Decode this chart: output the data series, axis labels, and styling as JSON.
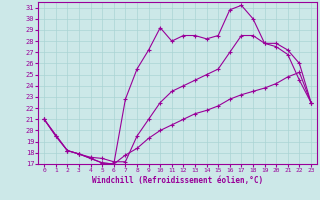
{
  "xlabel": "Windchill (Refroidissement éolien,°C)",
  "bg_color": "#cce8e8",
  "line_color": "#990099",
  "grid_color": "#aad4d4",
  "xlim": [
    -0.5,
    23.5
  ],
  "ylim": [
    17,
    31.5
  ],
  "xticks": [
    0,
    1,
    2,
    3,
    4,
    5,
    6,
    7,
    8,
    9,
    10,
    11,
    12,
    13,
    14,
    15,
    16,
    17,
    18,
    19,
    20,
    21,
    22,
    23
  ],
  "yticks": [
    17,
    18,
    19,
    20,
    21,
    22,
    23,
    24,
    25,
    26,
    27,
    28,
    29,
    30,
    31
  ],
  "line1_x": [
    0,
    1,
    2,
    3,
    4,
    5,
    6,
    7,
    8,
    9,
    10,
    11,
    12,
    13,
    14,
    15,
    16,
    17,
    18,
    19,
    20,
    21,
    22,
    23
  ],
  "line1_y": [
    21.0,
    19.5,
    18.2,
    17.9,
    17.5,
    17.1,
    17.0,
    17.8,
    18.4,
    19.3,
    20.0,
    20.5,
    21.0,
    21.5,
    21.8,
    22.2,
    22.8,
    23.2,
    23.5,
    23.8,
    24.2,
    24.8,
    25.2,
    22.5
  ],
  "line2_x": [
    0,
    1,
    2,
    3,
    4,
    5,
    6,
    7,
    8,
    9,
    10,
    11,
    12,
    13,
    14,
    15,
    16,
    17,
    18,
    19,
    20,
    21,
    22,
    23
  ],
  "line2_y": [
    21.0,
    19.5,
    18.2,
    17.9,
    17.5,
    17.1,
    17.0,
    22.8,
    25.5,
    27.2,
    29.2,
    28.0,
    28.5,
    28.5,
    28.2,
    28.5,
    30.8,
    31.2,
    30.0,
    27.8,
    27.5,
    26.8,
    24.5,
    22.5
  ],
  "line3_x": [
    0,
    2,
    3,
    4,
    5,
    6,
    7,
    8,
    9,
    10,
    11,
    12,
    13,
    14,
    15,
    16,
    17,
    18,
    19,
    20,
    21,
    22,
    23
  ],
  "line3_y": [
    21.0,
    18.2,
    17.9,
    17.6,
    17.5,
    17.2,
    17.2,
    19.5,
    21.0,
    22.5,
    23.5,
    24.0,
    24.5,
    25.0,
    25.5,
    27.0,
    28.5,
    28.5,
    27.8,
    27.8,
    27.2,
    26.0,
    22.5
  ]
}
